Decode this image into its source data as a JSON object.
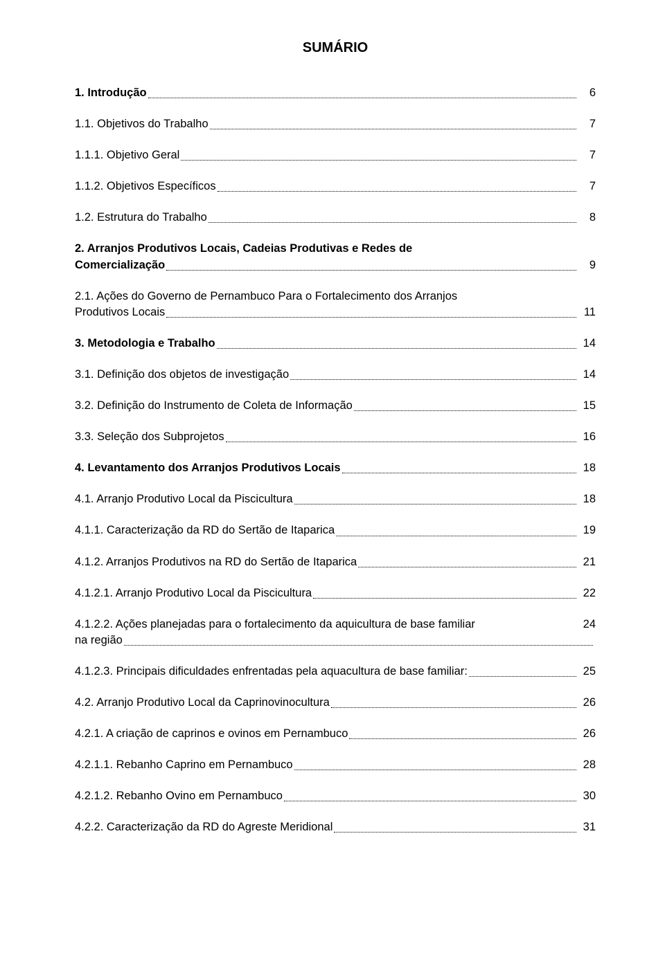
{
  "title": "SUMÁRIO",
  "entries": [
    {
      "label": "1. Introdução",
      "page": "6",
      "bold": true
    },
    {
      "label": "1.1. Objetivos do Trabalho",
      "page": "7",
      "bold": false
    },
    {
      "label": "1.1.1. Objetivo Geral",
      "page": "7",
      "bold": false
    },
    {
      "label": "1.1.2. Objetivos Específicos",
      "page": "7",
      "bold": false
    },
    {
      "label": "1.2. Estrutura do Trabalho",
      "page": "8",
      "bold": false
    },
    {
      "label_pre": "2. Arranjos Produtivos Locais, Cadeias Produtivas e Redes de",
      "label": "Comercialização",
      "page": "9",
      "bold": true,
      "multi": true
    },
    {
      "label_pre": "2.1. Ações do Governo de Pernambuco Para o Fortalecimento dos Arranjos",
      "label": "Produtivos Locais",
      "page": "11",
      "bold": false,
      "multi": true
    },
    {
      "label": "3. Metodologia e Trabalho",
      "page": "14",
      "bold": true
    },
    {
      "label": "3.1. Definição dos objetos de investigação",
      "page": "14",
      "bold": false
    },
    {
      "label": "3.2. Definição do Instrumento de Coleta de Informação",
      "page": "15",
      "bold": false
    },
    {
      "label": "3.3. Seleção dos Subprojetos",
      "page": "16",
      "bold": false
    },
    {
      "label": "4. Levantamento dos Arranjos Produtivos Locais",
      "page": "18",
      "bold": true
    },
    {
      "label": "4.1. Arranjo Produtivo Local da Piscicultura",
      "page": "18",
      "bold": false
    },
    {
      "label": "4.1.1. Caracterização da RD do Sertão de Itaparica",
      "page": "19",
      "bold": false
    },
    {
      "label": "4.1.2. Arranjos Produtivos na RD do Sertão de Itaparica",
      "page": "21",
      "bold": false
    },
    {
      "label": "4.1.2.1. Arranjo Produtivo Local da Piscicultura",
      "page": "22",
      "bold": false
    },
    {
      "label_pre": "4.1.2.2. Ações planejadas para o fortalecimento da aquicultura de base familiar",
      "label": "na região",
      "page": "24",
      "bold": false,
      "multi": true,
      "page_top": true
    },
    {
      "label": "4.1.2.3. Principais dificuldades enfrentadas pela aquacultura de base familiar:",
      "page": "25",
      "bold": false
    },
    {
      "label": "4.2. Arranjo Produtivo Local da Caprinovinocultura",
      "page": "26",
      "bold": false
    },
    {
      "label": "4.2.1. A criação de caprinos e ovinos em Pernambuco",
      "page": "26",
      "bold": false
    },
    {
      "label": "4.2.1.1. Rebanho Caprino em Pernambuco",
      "page": "28",
      "bold": false
    },
    {
      "label": "4.2.1.2. Rebanho Ovino em Pernambuco",
      "page": "30",
      "bold": false
    },
    {
      "label": "4.2.2. Caracterização da RD do Agreste Meridional",
      "page": "31",
      "bold": false
    }
  ]
}
